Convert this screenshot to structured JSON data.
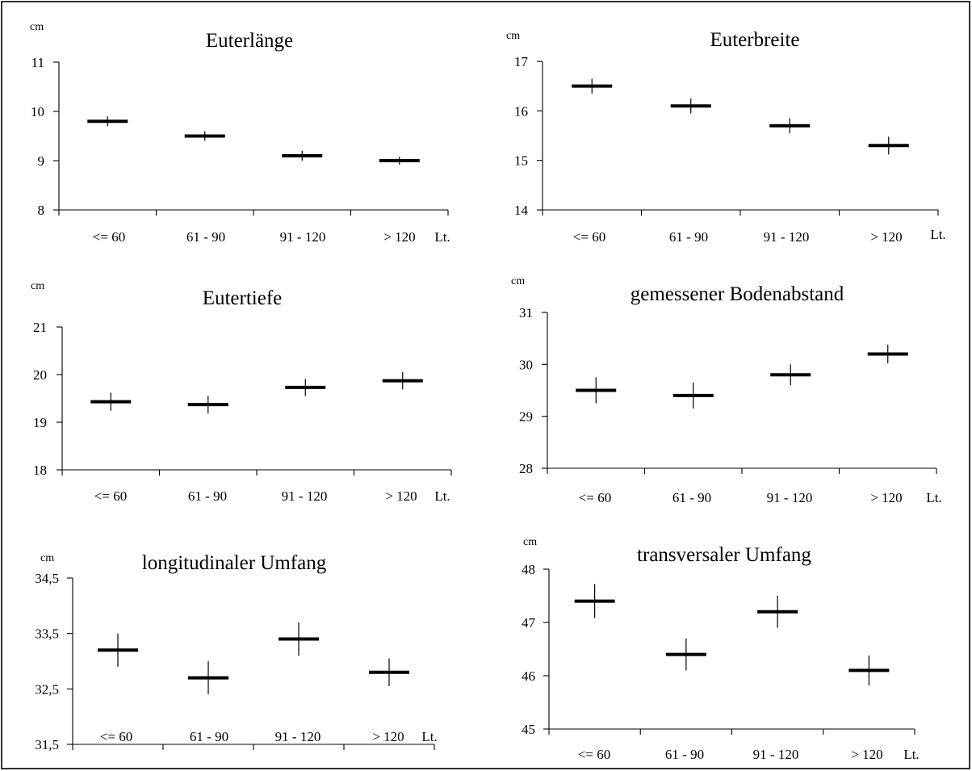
{
  "chart_data": [
    {
      "type": "scatter",
      "title": "Euterlänge",
      "ylabel": "cm",
      "xlabel": "Lt.",
      "categories": [
        "<= 60",
        "61 - 90",
        "91 - 120",
        "> 120"
      ],
      "values": [
        9.8,
        9.5,
        9.1,
        9.0
      ],
      "error_low": [
        9.7,
        9.4,
        9.0,
        8.92
      ],
      "error_high": [
        9.9,
        9.6,
        9.2,
        9.08
      ],
      "ylim": [
        8,
        11
      ],
      "yticks": [
        8,
        9,
        10,
        11
      ],
      "ytick_labels": [
        "8",
        "9",
        "10",
        "11"
      ]
    },
    {
      "type": "scatter",
      "title": "Euterbreite",
      "ylabel": "cm",
      "xlabel": "Lt.",
      "categories": [
        "<= 60",
        "61 - 90",
        "91 - 120",
        "> 120"
      ],
      "values": [
        16.5,
        16.1,
        15.7,
        15.3
      ],
      "error_low": [
        16.35,
        15.95,
        15.55,
        15.12
      ],
      "error_high": [
        16.65,
        16.25,
        15.85,
        15.48
      ],
      "ylim": [
        14,
        17
      ],
      "yticks": [
        14,
        15,
        16,
        17
      ],
      "ytick_labels": [
        "14",
        "15",
        "16",
        "17"
      ]
    },
    {
      "type": "scatter",
      "title": "Eutertiefe",
      "ylabel": "cm",
      "xlabel": "Lt.",
      "categories": [
        "<= 60",
        "61 - 90",
        "91 - 120",
        "> 120"
      ],
      "values": [
        19.43,
        19.37,
        19.73,
        19.87
      ],
      "error_low": [
        19.24,
        19.18,
        19.55,
        19.69
      ],
      "error_high": [
        19.62,
        19.56,
        19.91,
        20.05
      ],
      "ylim": [
        18,
        21
      ],
      "yticks": [
        18,
        19,
        20,
        21
      ],
      "ytick_labels": [
        "18",
        "19",
        "20",
        "21"
      ]
    },
    {
      "type": "scatter",
      "title": "gemessener Bodenabstand",
      "ylabel": "cm",
      "xlabel": "Lt.",
      "categories": [
        "<= 60",
        "61 - 90",
        "91 - 120",
        "> 120"
      ],
      "values": [
        29.5,
        29.4,
        29.8,
        30.2
      ],
      "error_low": [
        29.25,
        29.15,
        29.6,
        30.02
      ],
      "error_high": [
        29.75,
        29.65,
        30.0,
        30.38
      ],
      "ylim": [
        28,
        31
      ],
      "yticks": [
        28,
        29,
        30,
        31
      ],
      "ytick_labels": [
        "28",
        "29",
        "30",
        "31"
      ]
    },
    {
      "type": "scatter",
      "title": "longitudinaler Umfang",
      "ylabel": "cm",
      "xlabel": "Lt.",
      "categories": [
        "<= 60",
        "61 - 90",
        "91 - 120",
        "> 120"
      ],
      "values": [
        33.2,
        32.7,
        33.4,
        32.8
      ],
      "error_low": [
        32.9,
        32.4,
        33.1,
        32.55
      ],
      "error_high": [
        33.5,
        33.0,
        33.7,
        33.05
      ],
      "ylim": [
        31.5,
        34.5
      ],
      "yticks": [
        31.5,
        32.5,
        33.5,
        34.5
      ],
      "ytick_labels": [
        "31,5",
        "32,5",
        "33,5",
        "34,5"
      ]
    },
    {
      "type": "scatter",
      "title": "transversaler Umfang",
      "ylabel": "cm",
      "xlabel": "Lt.",
      "categories": [
        "<= 60",
        "61 - 90",
        "91 - 120",
        "> 120"
      ],
      "values": [
        47.4,
        46.4,
        47.2,
        46.1
      ],
      "error_low": [
        47.08,
        46.1,
        46.9,
        45.82
      ],
      "error_high": [
        47.72,
        46.7,
        47.5,
        46.38
      ],
      "ylim": [
        45,
        48
      ],
      "yticks": [
        45,
        46,
        47,
        48
      ],
      "ytick_labels": [
        "45",
        "46",
        "47",
        "48"
      ]
    }
  ]
}
